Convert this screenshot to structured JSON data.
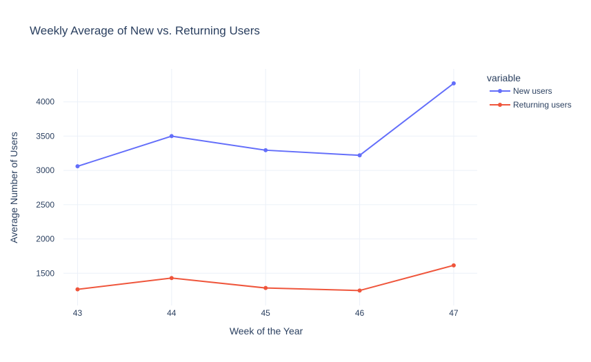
{
  "chart_data": {
    "type": "line",
    "title": "Weekly Average of New vs. Returning Users",
    "xlabel": "Week of the Year",
    "ylabel": "Average Number of Users",
    "x": [
      43,
      44,
      45,
      46,
      47
    ],
    "xlim": [
      42.85,
      47.25
    ],
    "ylim": [
      1030,
      4480
    ],
    "yticks": [
      1500,
      2000,
      2500,
      3000,
      3500,
      4000
    ],
    "grid": true,
    "legend": {
      "title": "variable",
      "placement": "top-right"
    },
    "series": [
      {
        "name": "New users",
        "color": "#636efa",
        "values": [
          3060,
          3500,
          3295,
          3220,
          4270
        ]
      },
      {
        "name": "Returning users",
        "color": "#ef553b",
        "values": [
          1265,
          1430,
          1285,
          1248,
          1615
        ]
      }
    ]
  }
}
